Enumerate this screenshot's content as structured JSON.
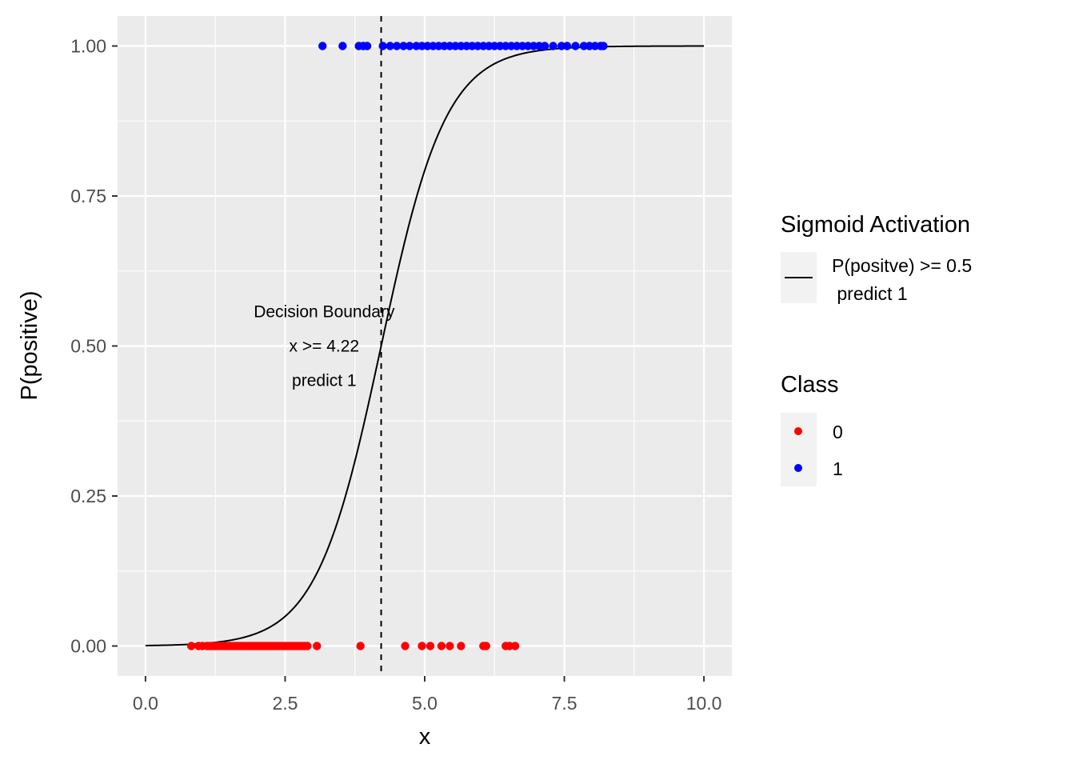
{
  "chart_data": {
    "type": "scatter",
    "xlabel": "x",
    "ylabel": "P(positive)",
    "xlim": [
      -0.5,
      10.5
    ],
    "ylim": [
      -0.05,
      1.05
    ],
    "x_ticks": [
      0,
      2.5,
      5,
      7.5,
      10
    ],
    "x_tick_labels": [
      "0.0",
      "2.5",
      "5.0",
      "7.5",
      "10.0"
    ],
    "y_ticks": [
      0,
      0.25,
      0.5,
      0.75,
      1
    ],
    "y_tick_labels": [
      "0.00",
      "0.25",
      "0.50",
      "0.75",
      "1.00"
    ],
    "grid": true,
    "legend_position": "right",
    "curve": {
      "type": "sigmoid",
      "x_range": [
        0,
        10
      ],
      "midpoint": 4.22,
      "slope": 1.72,
      "color": "#000000"
    },
    "decision_boundary": {
      "x": 4.22,
      "style": "dashed",
      "color": "#000000"
    },
    "annotation": {
      "lines": [
        "Decision Boundary",
        "x >= 4.22",
        "predict 1"
      ],
      "x": 3.2,
      "y": 0.5
    },
    "series": [
      {
        "name": "0",
        "color": "#ff0000",
        "y": 0,
        "x": [
          0.82,
          0.95,
          1.02,
          1.1,
          1.15,
          1.2,
          1.25,
          1.3,
          1.35,
          1.4,
          1.45,
          1.5,
          1.55,
          1.6,
          1.65,
          1.7,
          1.75,
          1.8,
          1.85,
          1.9,
          1.95,
          2.0,
          2.05,
          2.1,
          2.15,
          2.2,
          2.25,
          2.3,
          2.35,
          2.4,
          2.45,
          2.5,
          2.55,
          2.6,
          2.65,
          2.7,
          2.75,
          2.8,
          2.85,
          2.9,
          3.07,
          3.85,
          4.65,
          4.95,
          5.1,
          5.3,
          5.45,
          5.65,
          6.05,
          6.1,
          6.45,
          6.52,
          6.62
        ]
      },
      {
        "name": "1",
        "color": "#0000ff",
        "y": 1,
        "x": [
          3.17,
          3.53,
          3.82,
          3.9,
          3.97,
          4.25,
          4.38,
          4.5,
          4.62,
          4.73,
          4.85,
          4.95,
          5.05,
          5.15,
          5.25,
          5.35,
          5.45,
          5.55,
          5.65,
          5.75,
          5.85,
          5.95,
          6.05,
          6.15,
          6.25,
          6.35,
          6.45,
          6.55,
          6.65,
          6.75,
          6.85,
          6.95,
          7.05,
          7.15,
          7.3,
          7.45,
          7.55,
          7.7,
          7.85,
          7.95,
          8.05,
          8.15,
          8.2
        ]
      }
    ],
    "legends": [
      {
        "title": "Sigmoid Activation",
        "entries": [
          {
            "label_lines": [
              "P(positve) >= 0.5",
              " predict 1"
            ],
            "glyph": "line"
          }
        ]
      },
      {
        "title": "Class",
        "entries": [
          {
            "label": "0",
            "color": "#ff0000"
          },
          {
            "label": "1",
            "color": "#0000ff"
          }
        ]
      }
    ]
  }
}
